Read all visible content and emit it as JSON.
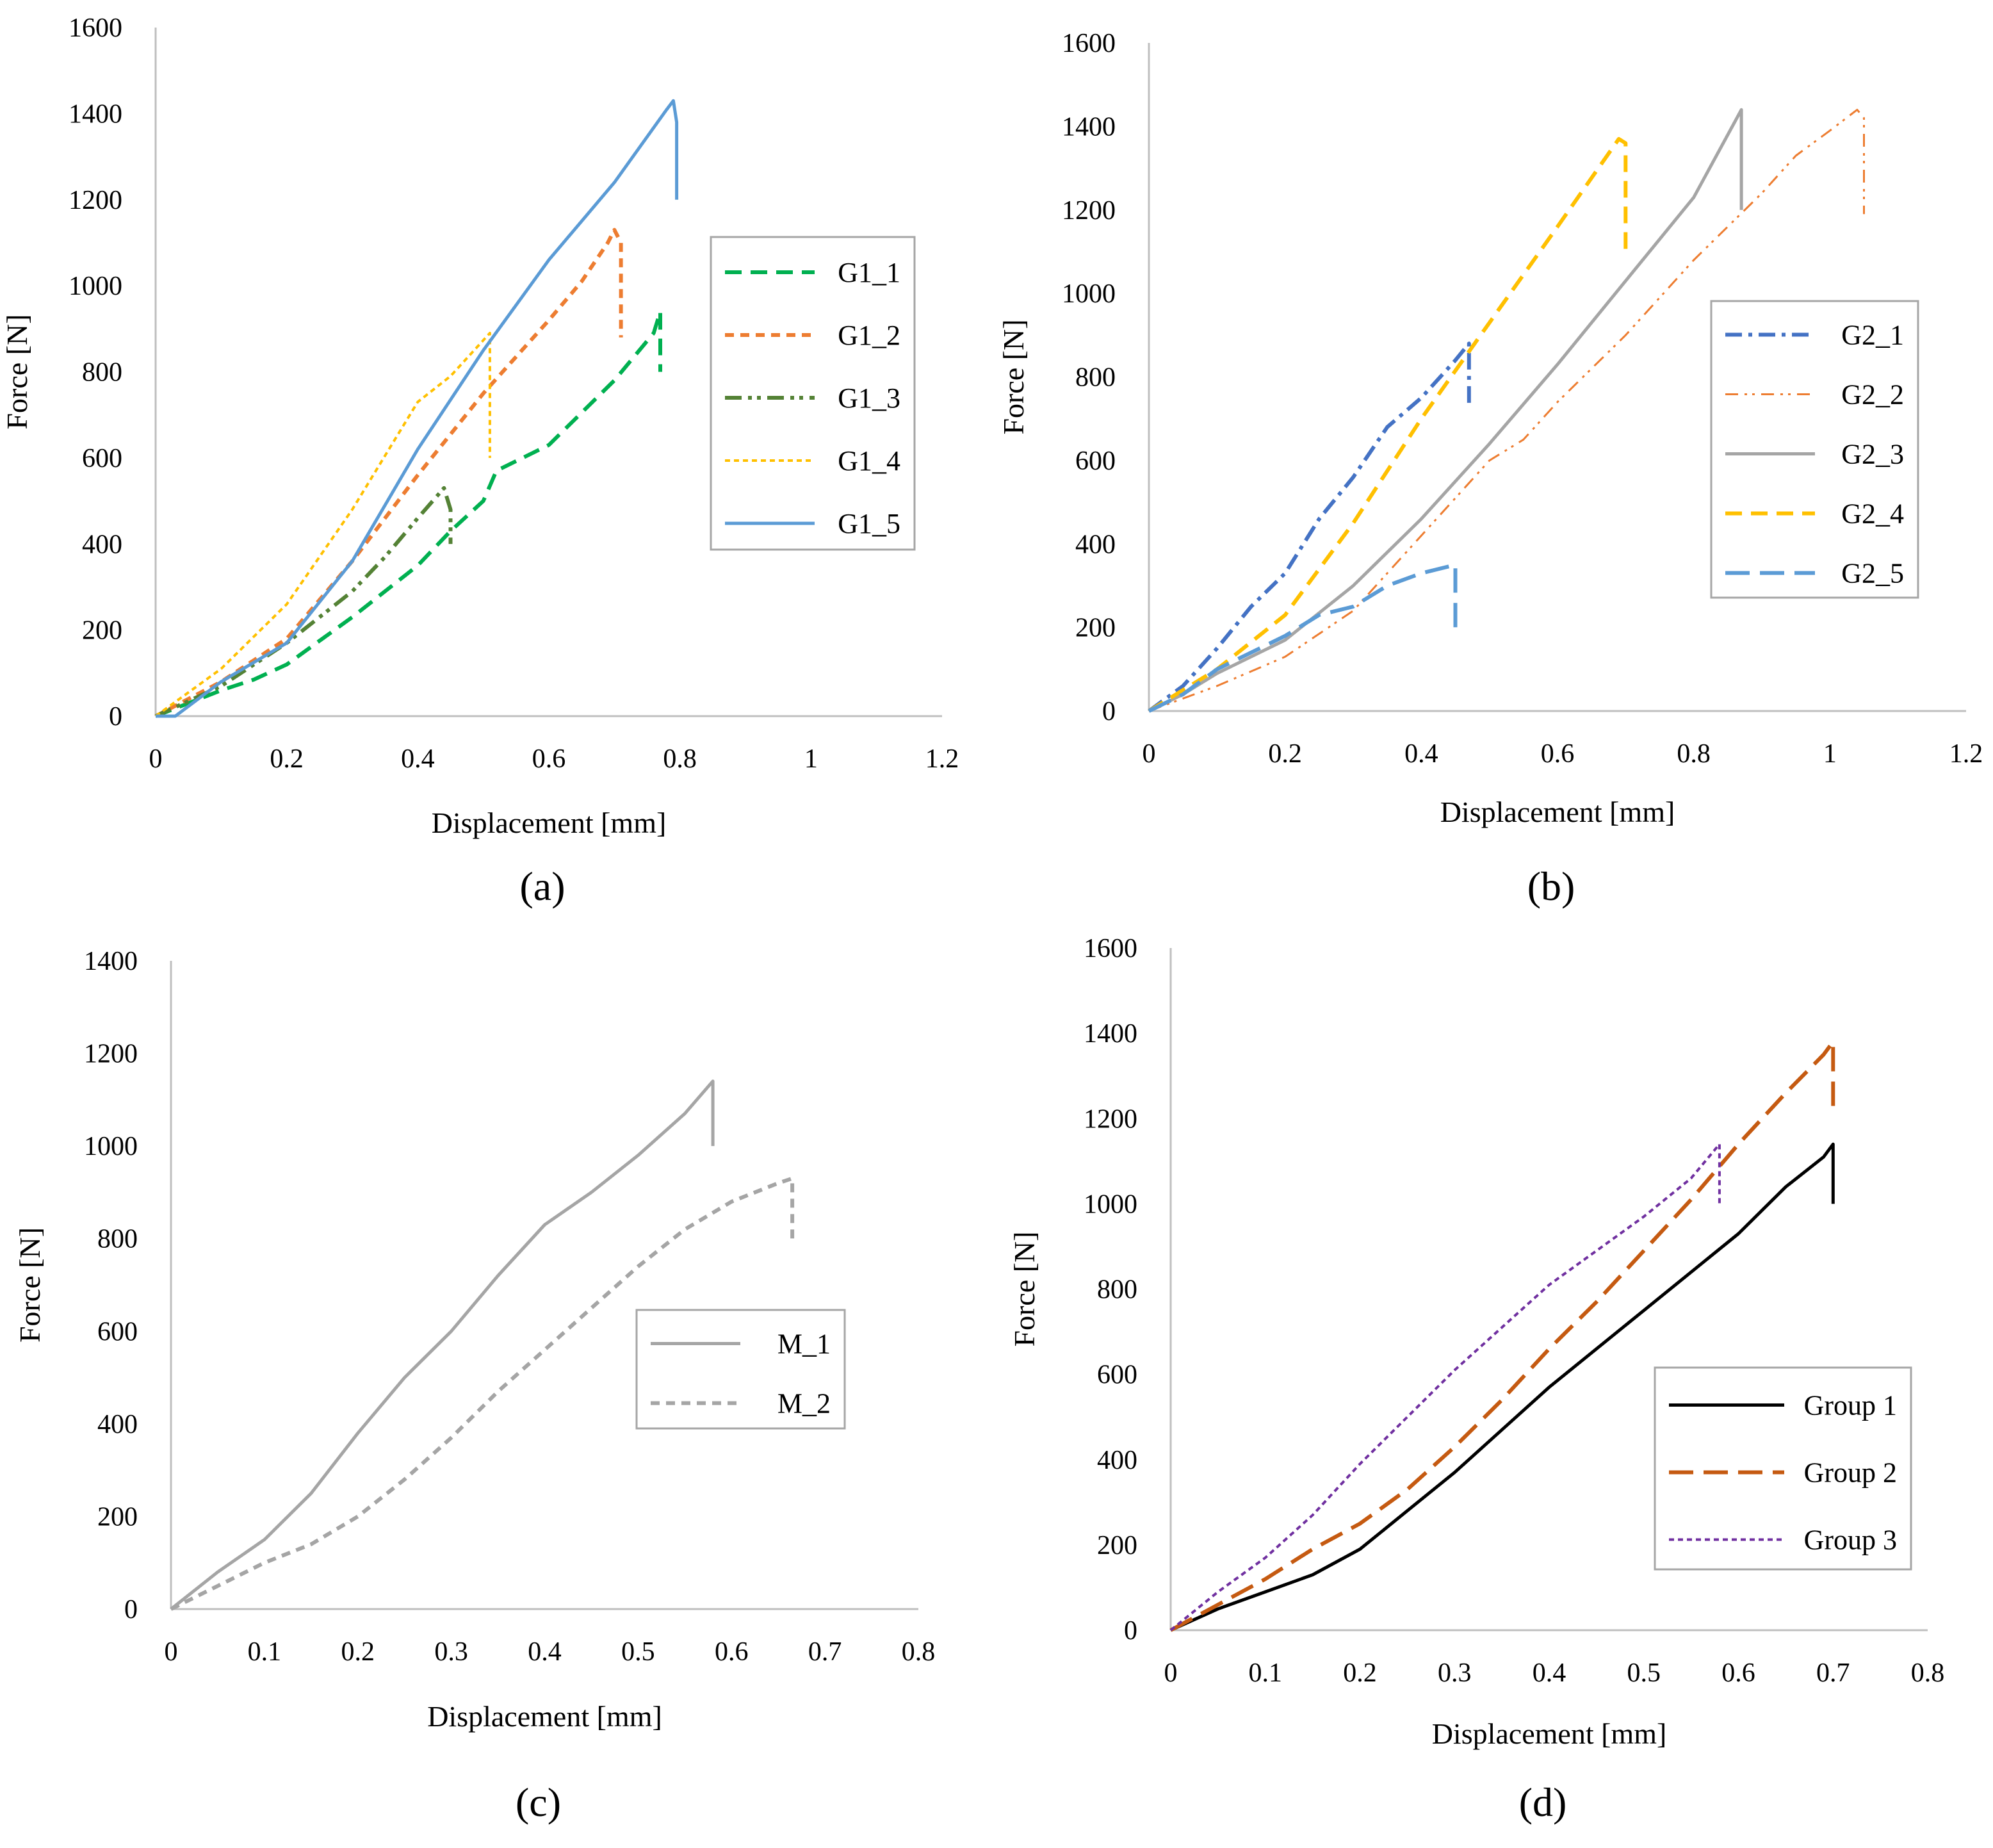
{
  "chart_data": [
    {
      "type": "line",
      "panel_label": "(a)",
      "xlabel": "Displacement [mm]",
      "ylabel": "Force [N]",
      "xlim": [
        0,
        1.2
      ],
      "ylim": [
        0,
        1600
      ],
      "xticks": [
        "0",
        "0.2",
        "0.4",
        "0.6",
        "0.8",
        "1",
        "1.2"
      ],
      "yticks": [
        "0",
        "200",
        "400",
        "600",
        "800",
        "1000",
        "1200",
        "1400",
        "1600"
      ],
      "grid": false,
      "legend": "right",
      "series": [
        {
          "name": "G1_1",
          "color": "#00b050",
          "dash": "dash",
          "points": [
            [
              0,
              0
            ],
            [
              0.05,
              30
            ],
            [
              0.1,
              60
            ],
            [
              0.15,
              85
            ],
            [
              0.2,
              120
            ],
            [
              0.3,
              230
            ],
            [
              0.4,
              350
            ],
            [
              0.45,
              430
            ],
            [
              0.5,
              500
            ],
            [
              0.52,
              570
            ],
            [
              0.6,
              630
            ],
            [
              0.7,
              780
            ],
            [
              0.76,
              890
            ],
            [
              0.77,
              940
            ],
            [
              0.77,
              800
            ]
          ]
        },
        {
          "name": "G1_2",
          "color": "#ed7d31",
          "dash": "shortdash",
          "points": [
            [
              0,
              0
            ],
            [
              0.1,
              80
            ],
            [
              0.2,
              180
            ],
            [
              0.3,
              360
            ],
            [
              0.4,
              560
            ],
            [
              0.5,
              750
            ],
            [
              0.6,
              920
            ],
            [
              0.65,
              1010
            ],
            [
              0.69,
              1100
            ],
            [
              0.7,
              1130
            ],
            [
              0.71,
              1100
            ],
            [
              0.71,
              880
            ]
          ]
        },
        {
          "name": "G1_3",
          "color": "#548235",
          "dash": "dashdotdot",
          "points": [
            [
              0,
              0
            ],
            [
              0.1,
              70
            ],
            [
              0.2,
              170
            ],
            [
              0.3,
              290
            ],
            [
              0.35,
              370
            ],
            [
              0.4,
              460
            ],
            [
              0.44,
              530
            ],
            [
              0.45,
              480
            ],
            [
              0.45,
              400
            ]
          ]
        },
        {
          "name": "G1_4",
          "color": "#ffc000",
          "dash": "dot",
          "points": [
            [
              0,
              0
            ],
            [
              0.1,
              110
            ],
            [
              0.2,
              260
            ],
            [
              0.3,
              480
            ],
            [
              0.4,
              730
            ],
            [
              0.45,
              790
            ],
            [
              0.51,
              890
            ],
            [
              0.51,
              600
            ]
          ]
        },
        {
          "name": "G1_5",
          "color": "#5b9bd5",
          "dash": "solid",
          "points": [
            [
              0,
              0
            ],
            [
              0.03,
              0
            ],
            [
              0.1,
              80
            ],
            [
              0.2,
              170
            ],
            [
              0.3,
              360
            ],
            [
              0.4,
              620
            ],
            [
              0.5,
              850
            ],
            [
              0.6,
              1060
            ],
            [
              0.7,
              1240
            ],
            [
              0.78,
              1410
            ],
            [
              0.79,
              1430
            ],
            [
              0.795,
              1380
            ],
            [
              0.795,
              1200
            ]
          ]
        }
      ]
    },
    {
      "type": "line",
      "panel_label": "(b)",
      "xlabel": "Displacement [mm]",
      "ylabel": "Force [N]",
      "xlim": [
        0,
        1.2
      ],
      "ylim": [
        0,
        1600
      ],
      "xticks": [
        "0",
        "0.2",
        "0.4",
        "0.6",
        "0.8",
        "1",
        "1.2"
      ],
      "yticks": [
        "0",
        "200",
        "400",
        "600",
        "800",
        "1000",
        "1200",
        "1400",
        "1600"
      ],
      "grid": false,
      "legend": "right",
      "series": [
        {
          "name": "G2_1",
          "color": "#4472c4",
          "dash": "dashdot",
          "points": [
            [
              0,
              0
            ],
            [
              0.05,
              60
            ],
            [
              0.1,
              150
            ],
            [
              0.15,
              250
            ],
            [
              0.2,
              330
            ],
            [
              0.25,
              460
            ],
            [
              0.3,
              560
            ],
            [
              0.35,
              680
            ],
            [
              0.4,
              750
            ],
            [
              0.45,
              840
            ],
            [
              0.47,
              880
            ],
            [
              0.47,
              730
            ]
          ]
        },
        {
          "name": "G2_2",
          "color": "#ed7d31",
          "dash": "dashdotdot-thin",
          "points": [
            [
              0,
              0
            ],
            [
              0.1,
              60
            ],
            [
              0.2,
              130
            ],
            [
              0.3,
              240
            ],
            [
              0.4,
              420
            ],
            [
              0.5,
              600
            ],
            [
              0.55,
              650
            ],
            [
              0.6,
              740
            ],
            [
              0.7,
              900
            ],
            [
              0.8,
              1080
            ],
            [
              0.9,
              1240
            ],
            [
              0.95,
              1330
            ],
            [
              1.0,
              1390
            ],
            [
              1.04,
              1440
            ],
            [
              1.05,
              1420
            ],
            [
              1.05,
              1190
            ]
          ]
        },
        {
          "name": "G2_3",
          "color": "#a5a5a5",
          "dash": "solid",
          "points": [
            [
              0,
              0
            ],
            [
              0.05,
              40
            ],
            [
              0.1,
              90
            ],
            [
              0.2,
              170
            ],
            [
              0.3,
              300
            ],
            [
              0.4,
              460
            ],
            [
              0.5,
              640
            ],
            [
              0.6,
              830
            ],
            [
              0.7,
              1030
            ],
            [
              0.8,
              1230
            ],
            [
              0.87,
              1440
            ],
            [
              0.87,
              1200
            ]
          ]
        },
        {
          "name": "G2_4",
          "color": "#ffc000",
          "dash": "dash",
          "points": [
            [
              0,
              0
            ],
            [
              0.1,
              100
            ],
            [
              0.2,
              230
            ],
            [
              0.3,
              450
            ],
            [
              0.4,
              700
            ],
            [
              0.5,
              930
            ],
            [
              0.6,
              1160
            ],
            [
              0.69,
              1370
            ],
            [
              0.7,
              1360
            ],
            [
              0.7,
              1100
            ]
          ]
        },
        {
          "name": "G2_5",
          "color": "#5b9bd5",
          "dash": "longdash",
          "points": [
            [
              0,
              0
            ],
            [
              0.05,
              40
            ],
            [
              0.1,
              100
            ],
            [
              0.2,
              180
            ],
            [
              0.25,
              230
            ],
            [
              0.3,
              250
            ],
            [
              0.35,
              300
            ],
            [
              0.4,
              330
            ],
            [
              0.45,
              350
            ],
            [
              0.45,
              190
            ]
          ]
        }
      ]
    },
    {
      "type": "line",
      "panel_label": "(c)",
      "xlabel": "Displacement [mm]",
      "ylabel": "Force [N]",
      "xlim": [
        0,
        0.8
      ],
      "ylim": [
        0,
        1400
      ],
      "xticks": [
        "0",
        "0.1",
        "0.2",
        "0.3",
        "0.4",
        "0.5",
        "0.6",
        "0.7",
        "0.8"
      ],
      "yticks": [
        "0",
        "200",
        "400",
        "600",
        "800",
        "1000",
        "1200",
        "1400"
      ],
      "grid": false,
      "legend": "right",
      "series": [
        {
          "name": "M_1",
          "color": "#a5a5a5",
          "dash": "solid",
          "points": [
            [
              0,
              0
            ],
            [
              0.05,
              80
            ],
            [
              0.1,
              150
            ],
            [
              0.15,
              250
            ],
            [
              0.2,
              380
            ],
            [
              0.25,
              500
            ],
            [
              0.3,
              600
            ],
            [
              0.35,
              720
            ],
            [
              0.4,
              830
            ],
            [
              0.45,
              900
            ],
            [
              0.5,
              980
            ],
            [
              0.55,
              1070
            ],
            [
              0.58,
              1140
            ],
            [
              0.58,
              1000
            ]
          ]
        },
        {
          "name": "M_2",
          "color": "#a5a5a5",
          "dash": "shortdash",
          "points": [
            [
              0,
              0
            ],
            [
              0.05,
              50
            ],
            [
              0.1,
              100
            ],
            [
              0.15,
              140
            ],
            [
              0.2,
              200
            ],
            [
              0.25,
              280
            ],
            [
              0.3,
              370
            ],
            [
              0.35,
              470
            ],
            [
              0.4,
              560
            ],
            [
              0.45,
              650
            ],
            [
              0.5,
              740
            ],
            [
              0.55,
              820
            ],
            [
              0.6,
              880
            ],
            [
              0.65,
              920
            ],
            [
              0.665,
              930
            ],
            [
              0.665,
              800
            ]
          ]
        }
      ]
    },
    {
      "type": "line",
      "panel_label": "(d)",
      "xlabel": "Displacement [mm]",
      "ylabel": "Force [N]",
      "xlim": [
        0,
        0.8
      ],
      "ylim": [
        0,
        1600
      ],
      "xticks": [
        "0",
        "0.1",
        "0.2",
        "0.3",
        "0.4",
        "0.5",
        "0.6",
        "0.7",
        "0.8"
      ],
      "yticks": [
        "0",
        "200",
        "400",
        "600",
        "800",
        "1000",
        "1200",
        "1400",
        "1600"
      ],
      "grid": false,
      "legend": "right",
      "series": [
        {
          "name": "Group 1",
          "color": "#000000",
          "dash": "solid",
          "points": [
            [
              0,
              0
            ],
            [
              0.05,
              50
            ],
            [
              0.1,
              90
            ],
            [
              0.15,
              130
            ],
            [
              0.2,
              190
            ],
            [
              0.25,
              280
            ],
            [
              0.3,
              370
            ],
            [
              0.35,
              470
            ],
            [
              0.4,
              570
            ],
            [
              0.45,
              660
            ],
            [
              0.5,
              750
            ],
            [
              0.55,
              840
            ],
            [
              0.6,
              930
            ],
            [
              0.65,
              1040
            ],
            [
              0.69,
              1110
            ],
            [
              0.7,
              1140
            ],
            [
              0.7,
              1000
            ]
          ]
        },
        {
          "name": "Group 2",
          "color": "#c55a11",
          "dash": "longdash",
          "points": [
            [
              0,
              0
            ],
            [
              0.05,
              60
            ],
            [
              0.1,
              120
            ],
            [
              0.15,
              190
            ],
            [
              0.2,
              250
            ],
            [
              0.25,
              330
            ],
            [
              0.3,
              430
            ],
            [
              0.35,
              540
            ],
            [
              0.4,
              660
            ],
            [
              0.45,
              770
            ],
            [
              0.5,
              890
            ],
            [
              0.55,
              1010
            ],
            [
              0.6,
              1140
            ],
            [
              0.65,
              1260
            ],
            [
              0.69,
              1350
            ],
            [
              0.7,
              1380
            ],
            [
              0.7,
              1220
            ]
          ]
        },
        {
          "name": "Group 3",
          "color": "#7030a0",
          "dash": "dot",
          "points": [
            [
              0,
              0
            ],
            [
              0.05,
              90
            ],
            [
              0.1,
              170
            ],
            [
              0.15,
              270
            ],
            [
              0.2,
              390
            ],
            [
              0.25,
              500
            ],
            [
              0.3,
              610
            ],
            [
              0.35,
              710
            ],
            [
              0.4,
              810
            ],
            [
              0.45,
              890
            ],
            [
              0.5,
              970
            ],
            [
              0.55,
              1060
            ],
            [
              0.58,
              1140
            ],
            [
              0.58,
              1000
            ]
          ]
        }
      ]
    }
  ]
}
